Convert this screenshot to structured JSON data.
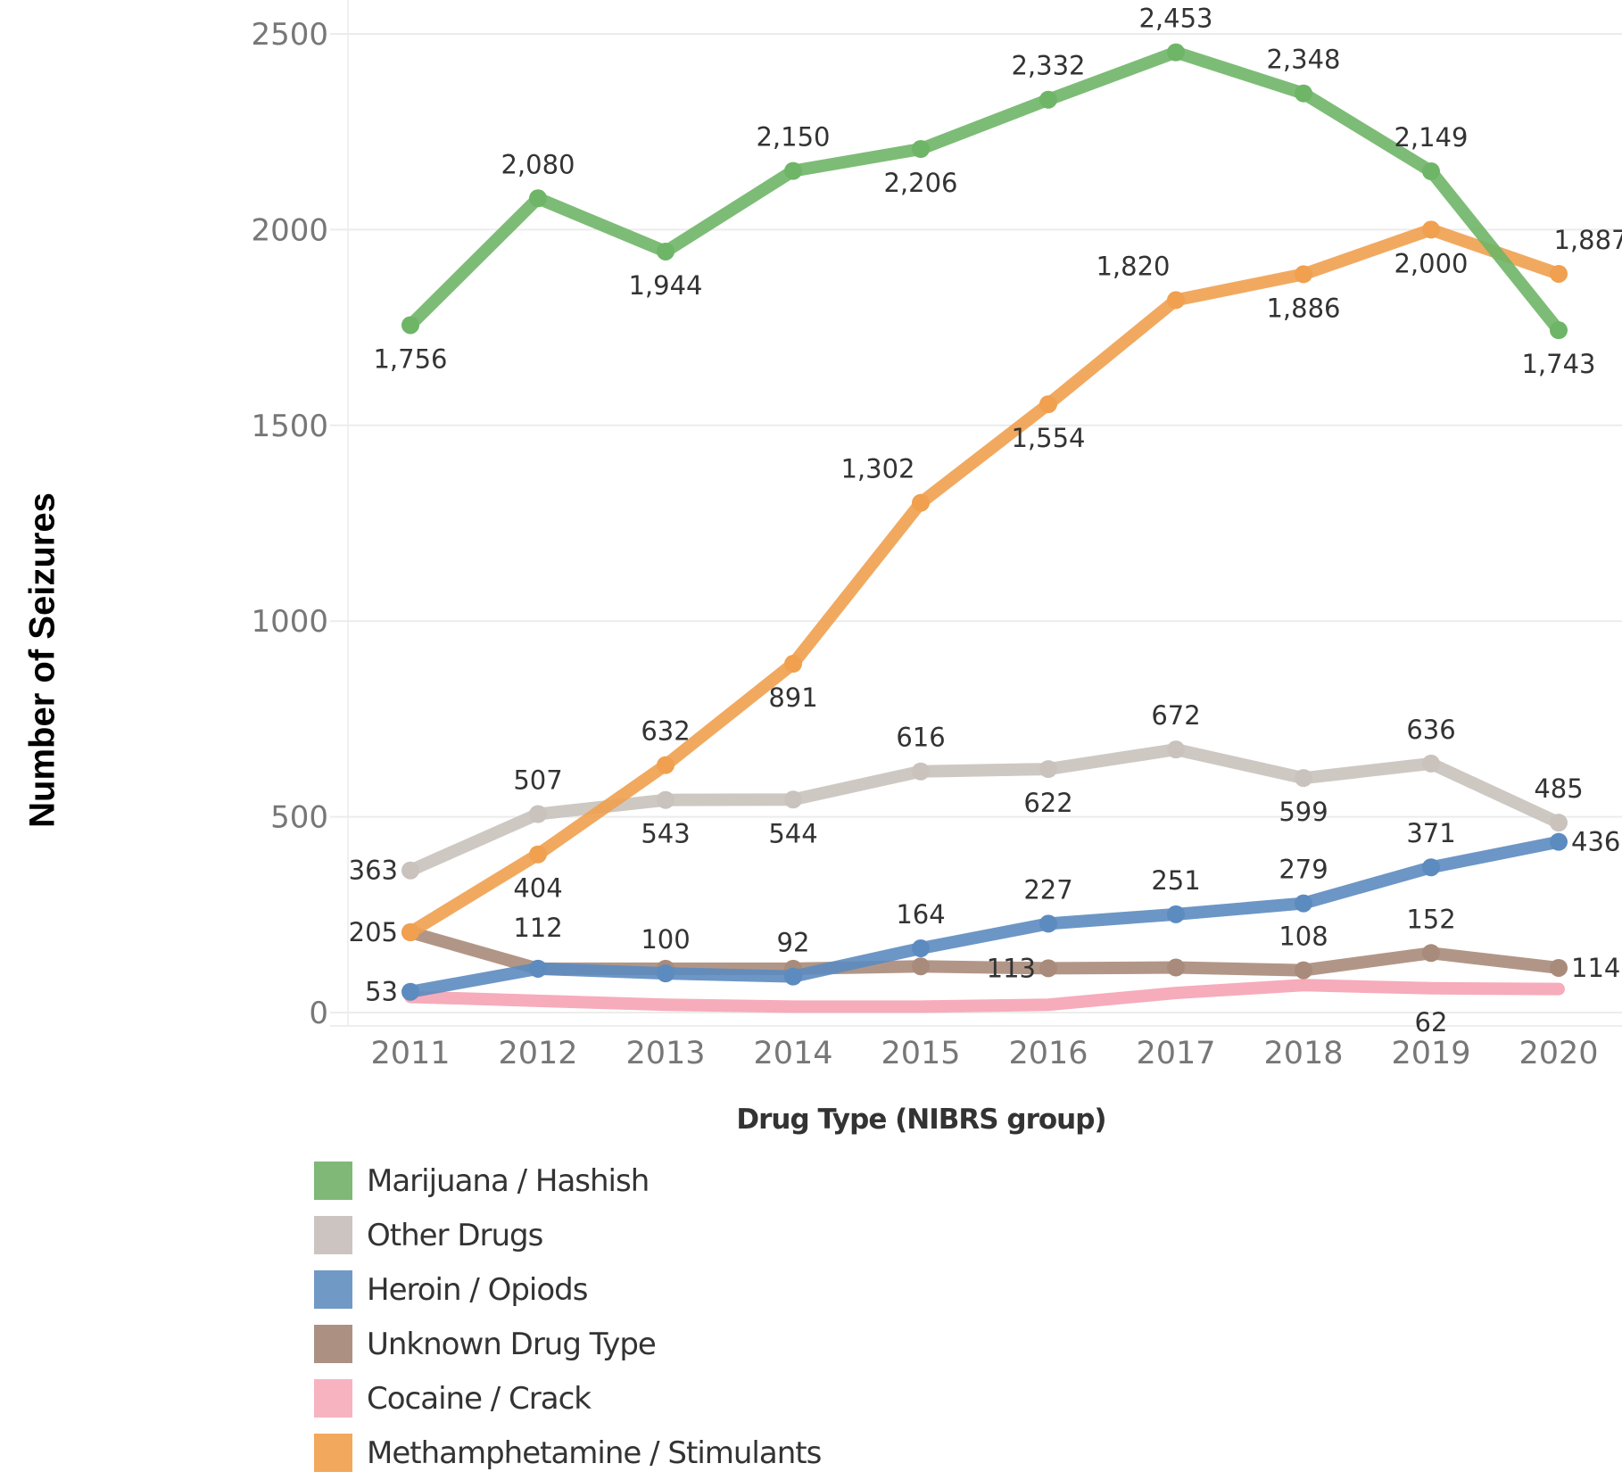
{
  "chart_data": {
    "type": "line",
    "title": "",
    "xlabel": "Drug Type (NIBRS group)",
    "ylabel": "Number of Seizures",
    "x": [
      "2011",
      "2012",
      "2013",
      "2014",
      "2015",
      "2016",
      "2017",
      "2018",
      "2019",
      "2020"
    ],
    "ylim": [
      0,
      2500
    ],
    "yticks": [
      0,
      500,
      1000,
      1500,
      2000,
      2500
    ],
    "ytick_labels": [
      "0",
      "500",
      "1000",
      "1500",
      "2000",
      "2500"
    ],
    "grid": true,
    "legend_position": "bottom-left",
    "series": [
      {
        "name": "Marijuana / Hashish",
        "color": "#6fb567",
        "values": [
          1756,
          2080,
          1944,
          2150,
          2206,
          2332,
          2453,
          2348,
          2149,
          1743
        ],
        "labels": [
          "1,756",
          "2,080",
          "1,944",
          "2,150",
          "2,206",
          "2,332",
          "2,453",
          "2,348",
          "2,149",
          "1,743"
        ],
        "label_pos": [
          "below",
          "above",
          "below",
          "above",
          "below",
          "above",
          "above",
          "above",
          "above",
          "below"
        ]
      },
      {
        "name": "Other Drugs",
        "color": "#c9c2bd",
        "values": [
          363,
          507,
          543,
          544,
          616,
          622,
          672,
          599,
          636,
          485
        ],
        "labels": [
          "363",
          "507",
          "543",
          "544",
          "616",
          "622",
          "672",
          "599",
          "636",
          "485"
        ],
        "label_pos": [
          "left",
          "above",
          "below",
          "below",
          "above",
          "below",
          "above",
          "below",
          "above",
          "above"
        ]
      },
      {
        "name": "Heroin / Opiods",
        "color": "#5c8bc0",
        "values": [
          53,
          112,
          100,
          92,
          164,
          227,
          251,
          279,
          371,
          436
        ],
        "labels": [
          "53",
          "112",
          "100",
          "92",
          "164",
          "227",
          "251",
          "279",
          "371",
          "436"
        ],
        "label_pos": [
          "left",
          "above-far",
          "above",
          "above",
          "above",
          "above",
          "above",
          "above",
          "above",
          "right"
        ]
      },
      {
        "name": "Unknown Drug Type",
        "color": "#a88b7a",
        "values": [
          205,
          112,
          112,
          112,
          118,
          113,
          115,
          108,
          152,
          114
        ],
        "labels": [
          "205",
          "",
          "",
          "",
          "",
          "113",
          "",
          "108",
          "152",
          "114"
        ],
        "label_pos": [
          "left",
          "",
          "",
          "",
          "",
          "left",
          "",
          "above",
          "above",
          "right"
        ]
      },
      {
        "name": "Cocaine / Crack",
        "color": "#f5a3b3",
        "values": [
          40,
          30,
          20,
          15,
          15,
          20,
          50,
          70,
          62,
          60
        ],
        "labels": [
          "",
          "",
          "",
          "",
          "",
          "",
          "",
          "",
          "62",
          ""
        ],
        "label_pos": [
          "",
          "",
          "",
          "",
          "",
          "",
          "",
          "",
          "below",
          ""
        ]
      },
      {
        "name": "Methamphetamine / Stimulants",
        "color": "#f0a04f",
        "values": [
          205,
          404,
          632,
          891,
          1302,
          1554,
          1820,
          1886,
          2000,
          1887
        ],
        "labels": [
          "",
          "404",
          "632",
          "891",
          "1,302",
          "1,554",
          "1,820",
          "1,886",
          "2,000",
          "1,887"
        ],
        "label_pos": [
          "",
          "below",
          "above",
          "below",
          "above-left",
          "below",
          "above-left",
          "below",
          "below",
          "above-right"
        ]
      }
    ]
  },
  "legend": {
    "items": [
      {
        "label": "Marijuana / Hashish",
        "color": "#80b877"
      },
      {
        "label": "Other Drugs",
        "color": "#cbc4c0"
      },
      {
        "label": "Heroin / Opiods",
        "color": "#7099c6"
      },
      {
        "label": "Unknown Drug Type",
        "color": "#ac9182"
      },
      {
        "label": "Cocaine / Crack",
        "color": "#f7b3c0"
      },
      {
        "label": "Methamphetamine / Stimulants",
        "color": "#f2a95e"
      }
    ]
  }
}
